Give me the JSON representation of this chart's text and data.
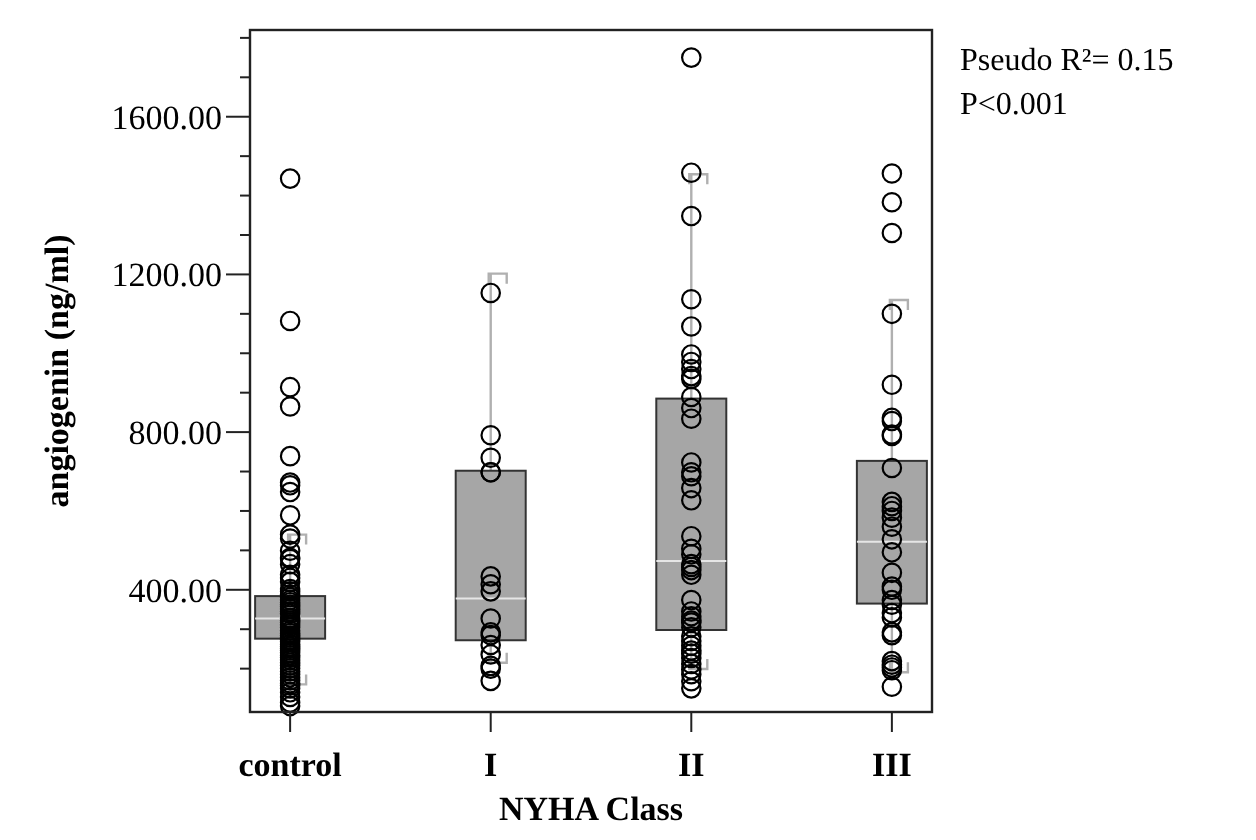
{
  "chart_data": {
    "type": "box",
    "categories": [
      "control",
      "I",
      "II",
      "III"
    ],
    "xlabel": "NYHA Class",
    "ylabel": "angiogenin (ng/ml)",
    "ylim": [
      90,
      1820
    ],
    "yticks": [
      {
        "value": 200,
        "label": null
      },
      {
        "value": 300,
        "label": null
      },
      {
        "value": 400,
        "label": "400.00"
      },
      {
        "value": 500,
        "label": null
      },
      {
        "value": 600,
        "label": null
      },
      {
        "value": 700,
        "label": null
      },
      {
        "value": 800,
        "label": "800.00"
      },
      {
        "value": 900,
        "label": null
      },
      {
        "value": 1000,
        "label": null
      },
      {
        "value": 1100,
        "label": null
      },
      {
        "value": 1200,
        "label": "1200.00"
      },
      {
        "value": 1300,
        "label": null
      },
      {
        "value": 1400,
        "label": null
      },
      {
        "value": 1500,
        "label": null
      },
      {
        "value": 1600,
        "label": "1600.00"
      },
      {
        "value": 1700,
        "label": null
      },
      {
        "value": 1800,
        "label": null
      }
    ],
    "grid": false,
    "marker": "circle",
    "annotations": [
      "Pseudo R²= 0.15",
      "P<0.001"
    ],
    "series": [
      {
        "type": "box",
        "color": "#a6a6a6",
        "boxes": [
          {
            "low": 160,
            "q1": 276,
            "median": 327,
            "q3": 384,
            "high": 540
          },
          {
            "low": 215,
            "q1": 272,
            "median": 378,
            "q3": 702,
            "high": 1202
          },
          {
            "low": 199,
            "q1": 298,
            "median": 473,
            "q3": 885,
            "high": 1454
          },
          {
            "low": 191,
            "q1": 365,
            "median": 522,
            "q3": 727,
            "high": 1135
          }
        ]
      },
      {
        "type": "scatter",
        "color": "#000000",
        "x": [
          "control",
          "control",
          "control",
          "control",
          "control",
          "control",
          "control",
          "control",
          "control",
          "control",
          "control",
          "control",
          "control",
          "control",
          "control",
          "control",
          "control",
          "control",
          "control",
          "control",
          "control",
          "control",
          "control",
          "control",
          "control",
          "control",
          "control",
          "control",
          "control",
          "control",
          "control",
          "control",
          "control",
          "control",
          "control",
          "control",
          "control",
          "control",
          "control",
          "control",
          "control",
          "control",
          "control",
          "control",
          "control",
          "control",
          "control",
          "control",
          "control",
          "control",
          "control",
          "control",
          "control",
          "control",
          "control",
          "control",
          "control",
          "control",
          "control",
          "control",
          "control",
          "control",
          "I",
          "I",
          "I",
          "I",
          "I",
          "I",
          "I",
          "I",
          "I",
          "I",
          "I",
          "I",
          "I",
          "I",
          "I",
          "I",
          "II",
          "II",
          "II",
          "II",
          "II",
          "II",
          "II",
          "II",
          "II",
          "II",
          "II",
          "II",
          "II",
          "II",
          "II",
          "II",
          "II",
          "II",
          "II",
          "II",
          "II",
          "II",
          "II",
          "II",
          "II",
          "II",
          "II",
          "II",
          "II",
          "II",
          "II",
          "II",
          "II",
          "II",
          "II",
          "II",
          "II",
          "II",
          "II",
          "II",
          "II",
          "II",
          "III",
          "III",
          "III",
          "III",
          "III",
          "III",
          "III",
          "III",
          "III",
          "III",
          "III",
          "III",
          "III",
          "III",
          "III",
          "III",
          "III",
          "III",
          "III",
          "III",
          "III",
          "III",
          "III",
          "III",
          "III",
          "III",
          "III",
          "III",
          "III",
          "III",
          "III"
        ],
        "values": [
          1443,
          1082,
          914,
          865,
          739,
          672,
          665,
          648,
          589,
          540,
          530,
          499,
          481,
          478,
          465,
          438,
          430,
          420,
          402,
          396,
          388,
          381,
          374,
          368,
          362,
          357,
          351,
          345,
          339,
          328,
          322,
          317,
          311,
          305,
          296,
          290,
          284,
          279,
          273,
          268,
          262,
          256,
          251,
          246,
          240,
          234,
          228,
          222,
          215,
          208,
          201,
          193,
          186,
          178,
          170,
          163,
          157,
          150,
          140,
          128,
          114,
          105,
          1153,
          792,
          735,
          698,
          698,
          434,
          414,
          396,
          327,
          292,
          285,
          260,
          236,
          207,
          200,
          169,
          1750,
          1458,
          1348,
          1137,
          1068,
          997,
          978,
          960,
          942,
          935,
          889,
          861,
          834,
          723,
          698,
          688,
          658,
          627,
          536,
          504,
          490,
          465,
          458,
          450,
          438,
          374,
          345,
          333,
          322,
          317,
          305,
          282,
          270,
          258,
          246,
          238,
          227,
          212,
          198,
          186,
          168,
          150,
          1456,
          1383,
          1305,
          1100,
          920,
          836,
          828,
          794,
          790,
          709,
          623,
          612,
          600,
          583,
          560,
          528,
          495,
          443,
          408,
          400,
          374,
          362,
          341,
          330,
          292,
          285,
          219,
          210,
          203,
          196,
          154
        ]
      }
    ]
  }
}
